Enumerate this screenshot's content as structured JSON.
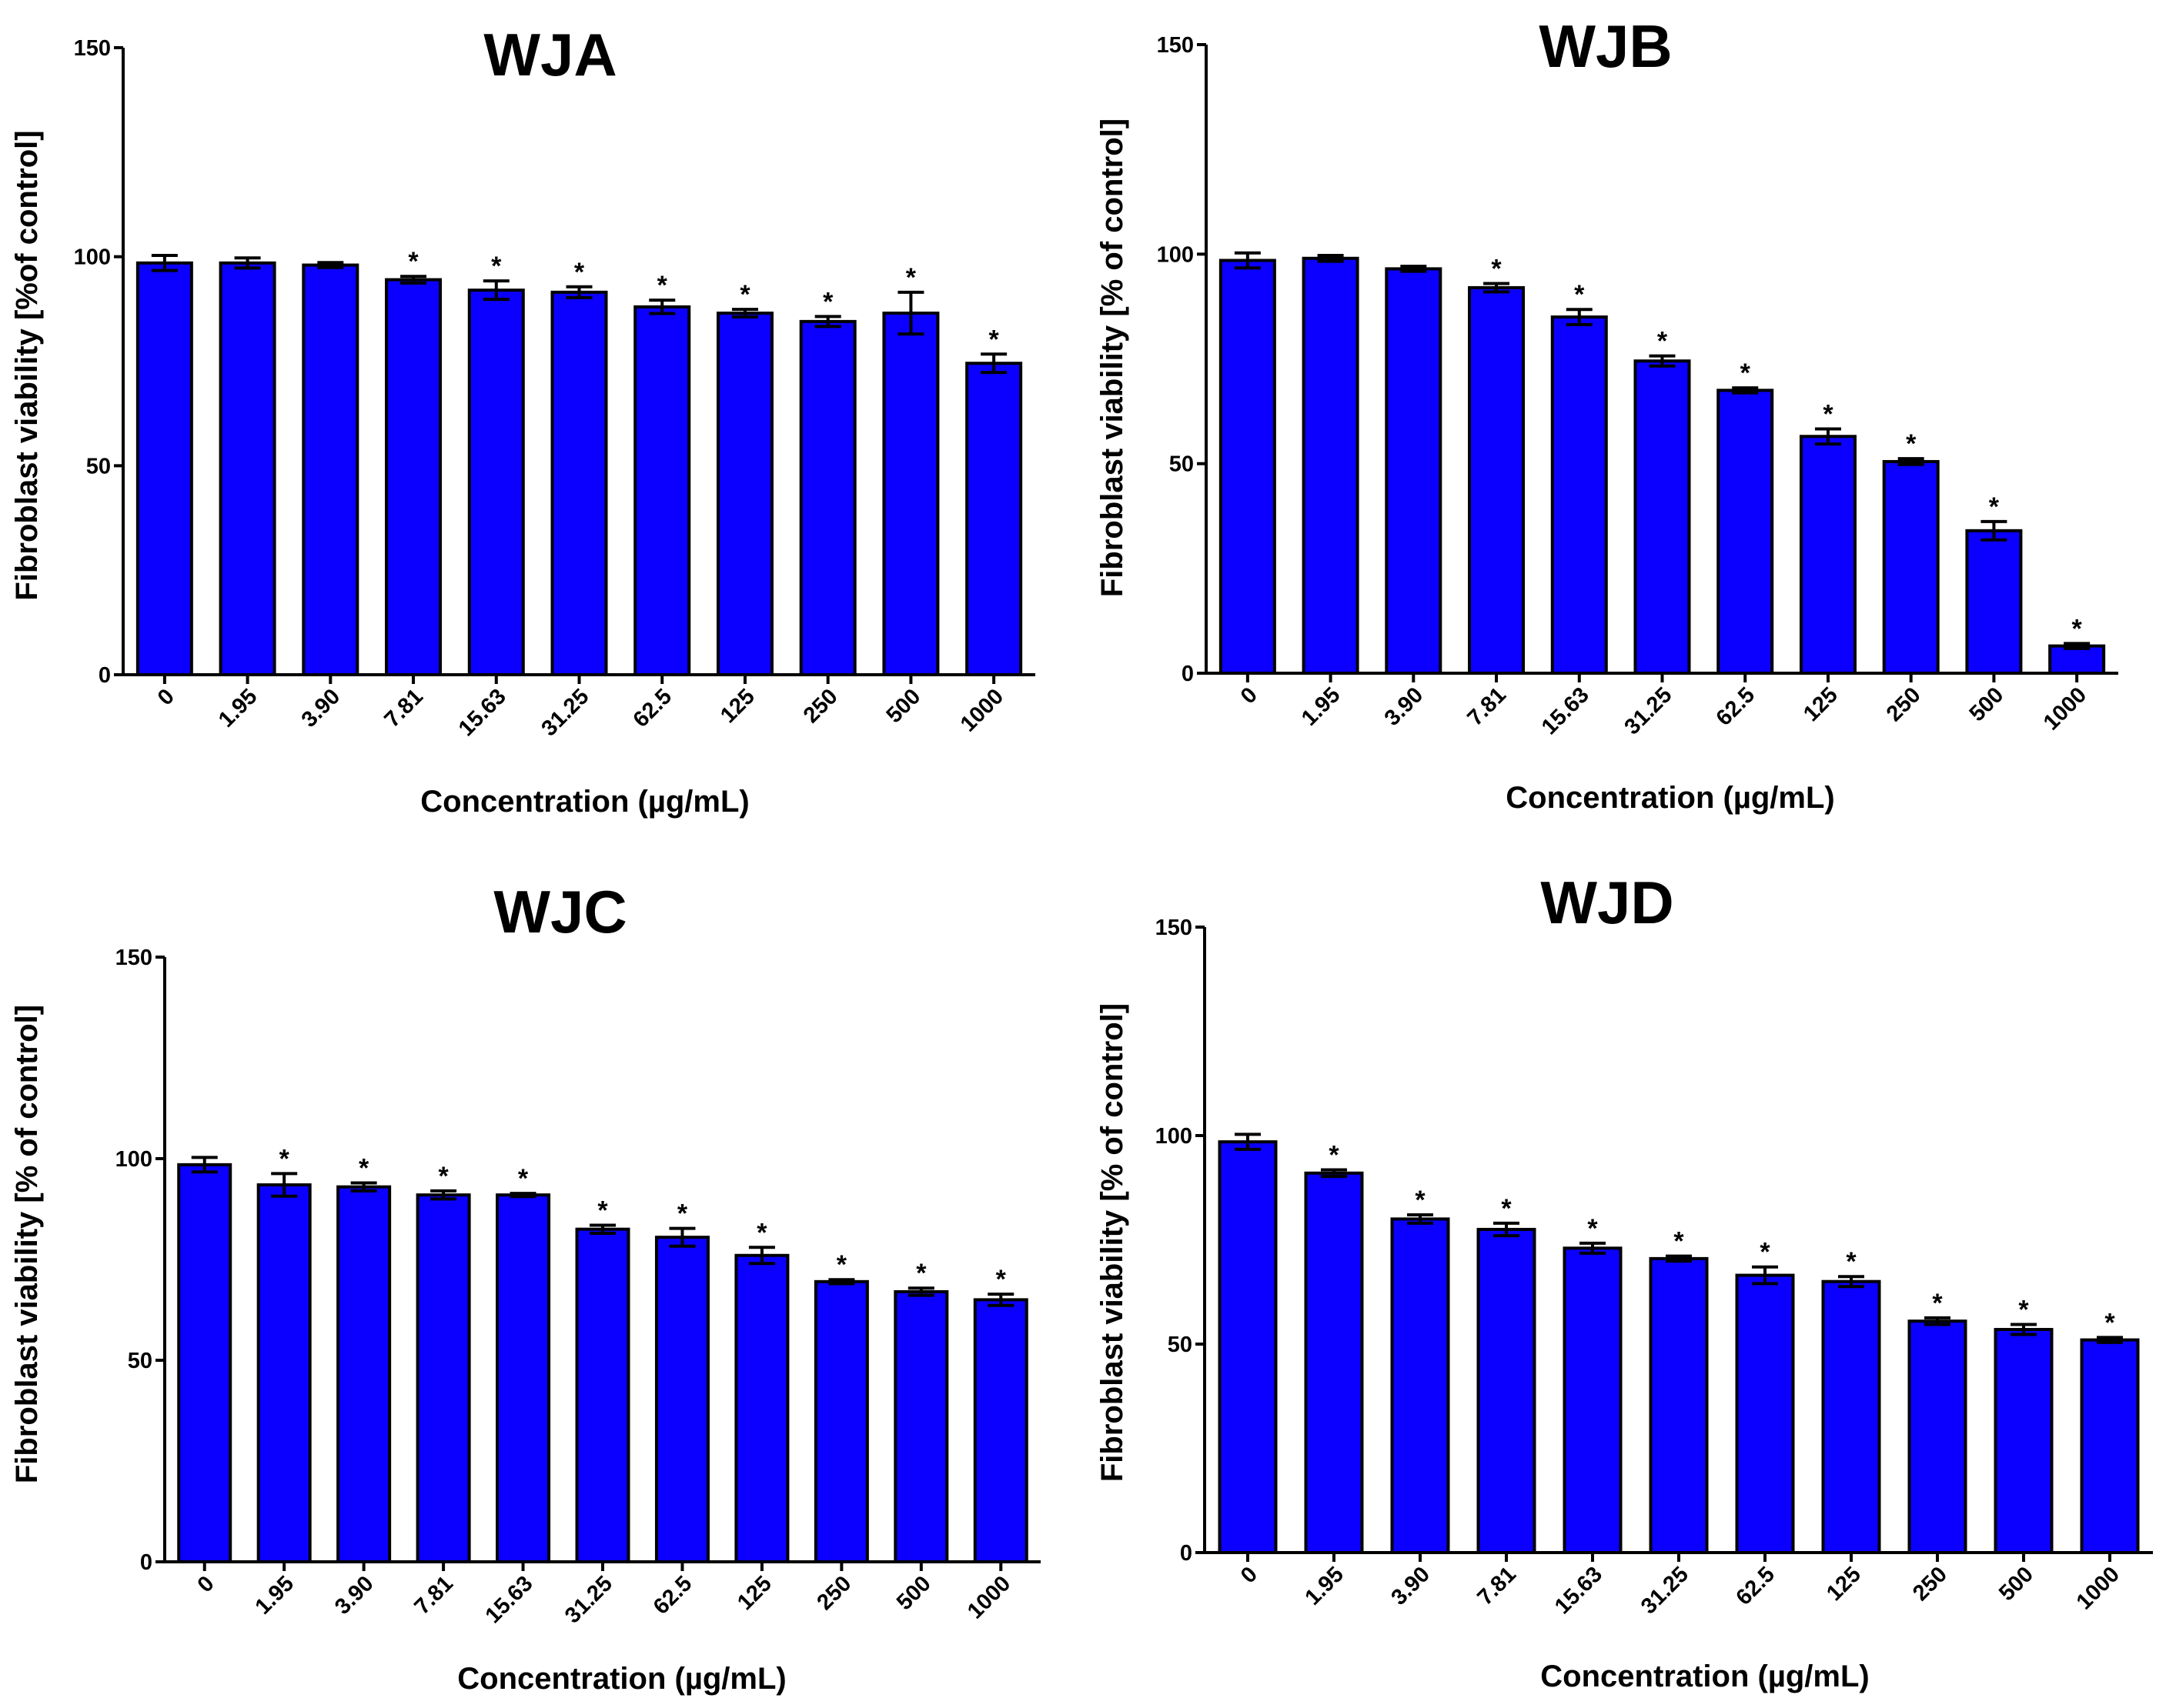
{
  "colors": {
    "bar_fill": "#0b00ff",
    "bar_stroke": "#000000",
    "axis": "#000000"
  },
  "chart_data": [
    {
      "type": "bar",
      "title": "WJA",
      "xlabel": "Concentration (µg/mL)",
      "ylabel": "Fibroblast viability [%of control]",
      "ylim": [
        0,
        150
      ],
      "yticks": [
        0,
        50,
        100,
        150
      ],
      "categories": [
        "0",
        "1.95",
        "3.90",
        "7.81",
        "15.63",
        "31.25",
        "62.5",
        "125",
        "250",
        "500",
        "1000"
      ],
      "values": [
        98.5,
        98.5,
        98,
        94.5,
        92,
        91.5,
        88,
        86.5,
        84.5,
        86.5,
        74.5
      ],
      "errors": [
        1.8,
        1.2,
        0.6,
        0.8,
        2.2,
        1.3,
        1.6,
        0.9,
        1.2,
        5.0,
        2.2
      ],
      "significance": [
        "",
        "",
        "",
        "*",
        "*",
        "*",
        "*",
        "*",
        "*",
        "*",
        "*"
      ]
    },
    {
      "type": "bar",
      "title": "WJB",
      "xlabel": "Concentration (µg/mL)",
      "ylabel": "Fibroblast viability [% of control]",
      "ylim": [
        0,
        150
      ],
      "yticks": [
        0,
        50,
        100,
        150
      ],
      "categories": [
        "0",
        "1.95",
        "3.90",
        "7.81",
        "15.63",
        "31.25",
        "62.5",
        "125",
        "250",
        "500",
        "1000"
      ],
      "values": [
        98.5,
        99,
        96.5,
        92,
        85,
        74.5,
        67.5,
        56.5,
        50.5,
        34,
        6.5
      ],
      "errors": [
        1.8,
        0.7,
        0.6,
        1.0,
        1.8,
        1.2,
        0.6,
        1.8,
        0.7,
        2.2,
        0.6
      ],
      "significance": [
        "",
        "",
        "",
        "*",
        "*",
        "*",
        "*",
        "*",
        "*",
        "*",
        "*"
      ]
    },
    {
      "type": "bar",
      "title": "WJC",
      "xlabel": "Concentration (µg/mL)",
      "ylabel": "Fibroblast viability [% of control]",
      "ylim": [
        0,
        150
      ],
      "yticks": [
        0,
        50,
        100,
        150
      ],
      "categories": [
        "0",
        "1.95",
        "3.90",
        "7.81",
        "15.63",
        "31.25",
        "62.5",
        "125",
        "250",
        "500",
        "1000"
      ],
      "values": [
        98.5,
        93.5,
        93,
        91,
        91,
        82.5,
        80.5,
        76,
        69.5,
        67,
        65
      ],
      "errors": [
        1.8,
        2.8,
        1.0,
        1.0,
        0.4,
        1.0,
        2.2,
        2.0,
        0.5,
        0.9,
        1.4
      ],
      "significance": [
        "",
        "*",
        "*",
        "*",
        "*",
        "*",
        "*",
        "*",
        "*",
        "*",
        "*"
      ]
    },
    {
      "type": "bar",
      "title": "WJD",
      "xlabel": "Concentration (µg/mL)",
      "ylabel": "Fibroblast viability [% of control]",
      "ylim": [
        0,
        150
      ],
      "yticks": [
        0,
        50,
        100,
        150
      ],
      "categories": [
        "0",
        "1.95",
        "3.90",
        "7.81",
        "15.63",
        "31.25",
        "62.5",
        "125",
        "250",
        "500",
        "1000"
      ],
      "values": [
        98.5,
        91,
        80,
        77.5,
        73,
        70.5,
        66.5,
        65,
        55.5,
        53.5,
        51
      ],
      "errors": [
        1.8,
        0.8,
        1.0,
        1.5,
        1.2,
        0.6,
        2.0,
        1.2,
        0.8,
        1.2,
        0.6
      ],
      "significance": [
        "",
        "*",
        "*",
        "*",
        "*",
        "*",
        "*",
        "*",
        "*",
        "*",
        "*"
      ]
    }
  ]
}
